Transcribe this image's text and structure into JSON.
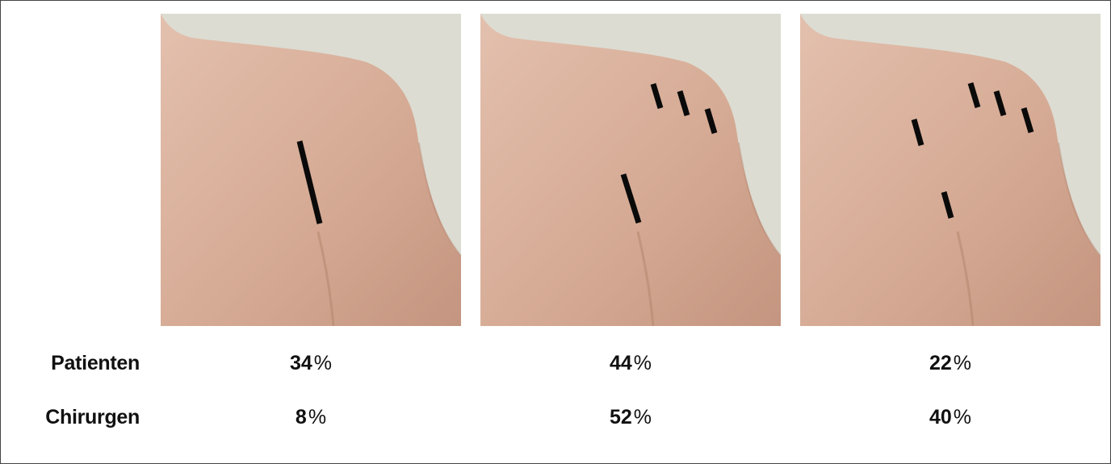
{
  "rows": [
    {
      "label": "Patienten",
      "values": [
        "34",
        "44",
        "22"
      ]
    },
    {
      "label": "Chirurgen",
      "values": [
        "8",
        "52",
        "40"
      ]
    }
  ],
  "unit": "%",
  "photos": [
    {
      "icon": "shoulder-photo",
      "marking": "long vertical incision line"
    },
    {
      "icon": "shoulder-photo",
      "marking": "three short marks plus one medium line"
    },
    {
      "icon": "shoulder-photo",
      "marking": "five short marks"
    }
  ],
  "colors": {
    "skin": "#d9b09c",
    "background_wall": "#dcdcd2",
    "marker": "#0a0a0a"
  }
}
